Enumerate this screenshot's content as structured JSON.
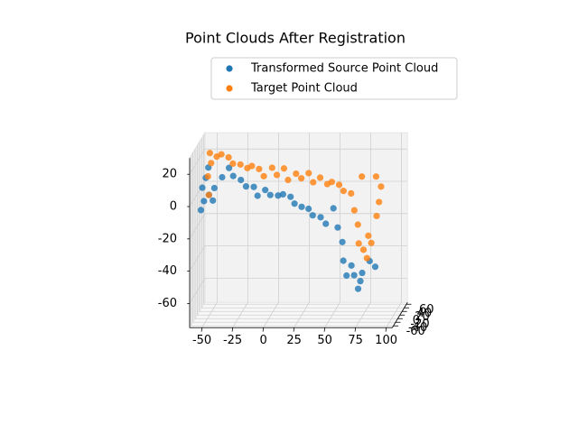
{
  "chart_data": {
    "type": "scatter3d",
    "title": "Point Clouds After Registration",
    "xlim": [
      -60,
      105
    ],
    "ylim": [
      -70,
      70
    ],
    "zlim": [
      -75,
      30
    ],
    "xticks": [
      -50,
      -25,
      0,
      25,
      50,
      75,
      100
    ],
    "yticks": [
      -60,
      -40,
      -20,
      0,
      20,
      40,
      60
    ],
    "zticks": [
      -60,
      -40,
      -20,
      0,
      20
    ],
    "grid": true,
    "legend": "upper right",
    "series": [
      {
        "name": "Transformed Source Point Cloud",
        "color": "#1f77b4",
        "x": [
          -55,
          -55,
          -53,
          -52,
          -50,
          -48,
          -45,
          -40,
          -35,
          -30,
          -25,
          -20,
          -15,
          -10,
          -5,
          0,
          5,
          10,
          15,
          20,
          25,
          30,
          35,
          40,
          45,
          50,
          55,
          58,
          60,
          65,
          68,
          72,
          75,
          80,
          85,
          70,
          62,
          -57
        ],
        "y": [
          5,
          -10,
          0,
          12,
          -5,
          8,
          -12,
          3,
          10,
          -8,
          6,
          -3,
          12,
          -10,
          4,
          -6,
          9,
          -2,
          11,
          -9,
          0,
          7,
          -11,
          5,
          -4,
          10,
          -7,
          2,
          -12,
          6,
          -3,
          9,
          -8,
          4,
          -1,
          11,
          -5,
          0
        ],
        "z": [
          -5,
          5,
          10,
          15,
          0,
          -5,
          5,
          10,
          15,
          12,
          8,
          5,
          3,
          0,
          2,
          0,
          -2,
          0,
          -3,
          -5,
          -8,
          -10,
          -12,
          -15,
          -18,
          -10,
          -20,
          -30,
          -40,
          -45,
          -50,
          -55,
          -48,
          -42,
          -45,
          -60,
          -50,
          -10
        ]
      },
      {
        "name": "Target Point Cloud",
        "color": "#ff7f0e",
        "x": [
          -50,
          -48,
          -45,
          -40,
          -35,
          -30,
          -25,
          -20,
          -15,
          -10,
          -5,
          0,
          5,
          10,
          15,
          20,
          25,
          30,
          35,
          40,
          45,
          50,
          55,
          60,
          65,
          68,
          70,
          72,
          75,
          80,
          85,
          88,
          90,
          85,
          75,
          78,
          82,
          -52,
          -50
        ],
        "y": [
          3,
          -8,
          10,
          -4,
          6,
          -11,
          2,
          9,
          -6,
          4,
          -9,
          11,
          -2,
          7,
          -12,
          5,
          -3,
          8,
          -7,
          1,
          10,
          -5,
          6,
          -10,
          3,
          -1,
          9,
          -6,
          4,
          -8,
          12,
          0,
          -4,
          7,
          -11,
          2,
          -3,
          8,
          -6
        ],
        "z": [
          25,
          20,
          22,
          25,
          22,
          20,
          18,
          15,
          18,
          15,
          12,
          15,
          12,
          15,
          10,
          12,
          10,
          12,
          8,
          10,
          5,
          8,
          5,
          3,
          0,
          -10,
          -20,
          -30,
          -35,
          -25,
          -15,
          -5,
          5,
          10,
          12,
          -40,
          -30,
          10,
          0
        ]
      }
    ]
  }
}
